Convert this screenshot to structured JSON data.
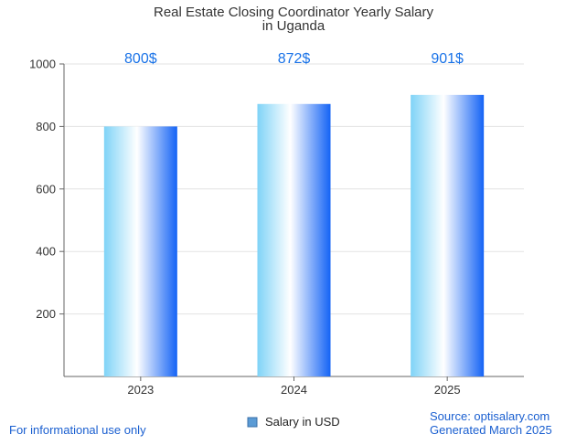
{
  "chart_data": {
    "type": "bar",
    "title": "Real Estate Closing Coordinator Yearly Salary",
    "subtitle": "in Uganda",
    "categories": [
      "2023",
      "2024",
      "2025"
    ],
    "series": [
      {
        "name": "Salary in USD",
        "values": [
          800,
          872,
          901
        ],
        "data_labels": [
          "800$",
          "872$",
          "901$"
        ]
      }
    ],
    "ylim": [
      0,
      1000
    ],
    "yticks": [
      "200",
      "400",
      "600",
      "800",
      "1000"
    ],
    "grid": true,
    "legend_position": "bottom-center",
    "colors": {
      "bar_edge": "#7fd3f7",
      "bar_center": "#ffffff",
      "bar_right": "#1463f5",
      "data_label": "#1a73e8",
      "footer_text": "#1a5fd0"
    }
  },
  "footer": {
    "left": "For informational use only",
    "source": "Source: optisalary.com",
    "generated": "Generated March 2025"
  }
}
